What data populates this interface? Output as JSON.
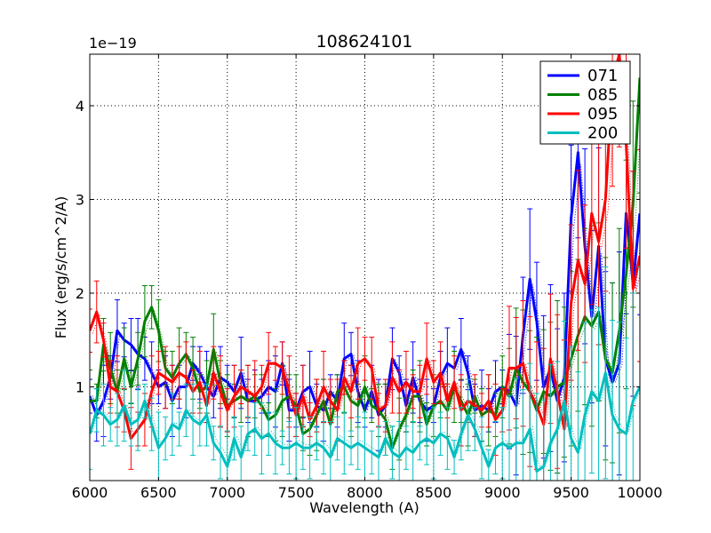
{
  "chart_data": {
    "type": "line",
    "title": "108624101",
    "xlabel": "Wavelength (A)",
    "ylabel": "Flux (erg/s/cm^2/A)",
    "y_scale_label": "1e−19",
    "xlim": [
      6000,
      10000
    ],
    "ylim": [
      0.0,
      4.55
    ],
    "xticks": [
      6000,
      6500,
      7000,
      7500,
      8000,
      8500,
      9000,
      9500,
      10000
    ],
    "xtick_labels": [
      "6000",
      "6500",
      "7000",
      "7500",
      "8000",
      "8500",
      "9000",
      "9500",
      "10000"
    ],
    "yticks": [
      1,
      2,
      3,
      4
    ],
    "ytick_labels": [
      "1",
      "2",
      "3",
      "4"
    ],
    "grid": true,
    "legend_position": "top-right",
    "x": [
      6000,
      6050,
      6100,
      6150,
      6200,
      6250,
      6300,
      6350,
      6400,
      6450,
      6500,
      6550,
      6600,
      6650,
      6700,
      6750,
      6800,
      6850,
      6900,
      6950,
      7000,
      7050,
      7100,
      7150,
      7200,
      7250,
      7300,
      7350,
      7400,
      7450,
      7500,
      7550,
      7600,
      7650,
      7700,
      7750,
      7800,
      7850,
      7900,
      7950,
      8000,
      8050,
      8100,
      8150,
      8200,
      8250,
      8300,
      8350,
      8400,
      8450,
      8500,
      8550,
      8600,
      8650,
      8700,
      8750,
      8800,
      8850,
      8900,
      8950,
      9000,
      9050,
      9100,
      9150,
      9200,
      9250,
      9300,
      9350,
      9400,
      9450,
      9500,
      9550,
      9600,
      9650,
      9700,
      9750,
      9800,
      9850,
      9900,
      9950,
      10000
    ],
    "series": [
      {
        "name": "071",
        "color": "#0000ff",
        "values": [
          0.9,
          0.7,
          0.85,
          1.1,
          1.6,
          1.5,
          1.45,
          1.35,
          1.3,
          1.15,
          1.0,
          1.05,
          0.85,
          1.0,
          1.0,
          1.25,
          1.15,
          1.0,
          0.9,
          1.1,
          1.05,
          0.95,
          1.15,
          0.85,
          0.85,
          0.9,
          1.0,
          0.95,
          1.25,
          0.75,
          0.75,
          0.95,
          1.0,
          0.8,
          0.75,
          0.95,
          0.85,
          1.3,
          1.35,
          0.95,
          0.75,
          0.95,
          0.7,
          0.8,
          1.3,
          1.15,
          0.8,
          1.1,
          0.85,
          0.75,
          0.8,
          1.1,
          1.25,
          1.2,
          1.4,
          1.15,
          0.75,
          0.8,
          0.75,
          0.95,
          1.0,
          0.95,
          0.8,
          1.55,
          2.15,
          1.7,
          1.0,
          1.2,
          0.85,
          1.1,
          2.8,
          3.5,
          2.5,
          1.75,
          2.5,
          1.3,
          1.05,
          1.25,
          2.85,
          2.1,
          2.85
        ]
      },
      {
        "name": "085",
        "color": "#008000",
        "values": [
          0.85,
          0.85,
          1.45,
          1.2,
          0.95,
          1.3,
          1.0,
          1.3,
          1.7,
          1.85,
          1.6,
          1.2,
          1.1,
          1.25,
          1.35,
          1.2,
          0.95,
          1.0,
          1.4,
          1.05,
          0.8,
          0.85,
          0.9,
          0.85,
          0.9,
          0.8,
          0.65,
          0.7,
          0.85,
          0.9,
          0.8,
          0.5,
          0.55,
          0.7,
          0.85,
          0.6,
          0.95,
          1.0,
          0.85,
          0.8,
          1.0,
          0.8,
          0.75,
          0.65,
          0.35,
          0.55,
          0.7,
          0.9,
          0.9,
          0.6,
          0.8,
          0.85,
          0.75,
          1.0,
          0.85,
          0.7,
          0.9,
          0.7,
          0.75,
          0.7,
          1.0,
          0.9,
          1.2,
          1.05,
          0.95,
          0.75,
          0.95,
          0.9,
          1.0,
          1.05,
          1.3,
          1.55,
          1.75,
          1.65,
          1.8,
          1.3,
          1.15,
          1.6,
          2.2,
          2.95,
          4.3
        ]
      },
      {
        "name": "095",
        "color": "#ff0000",
        "values": [
          1.6,
          1.8,
          1.5,
          1.0,
          0.95,
          0.75,
          0.45,
          0.55,
          0.65,
          0.95,
          1.15,
          1.1,
          1.05,
          1.15,
          1.1,
          0.95,
          1.05,
          0.8,
          1.15,
          0.95,
          0.75,
          0.9,
          1.0,
          0.95,
          0.9,
          1.0,
          1.25,
          1.25,
          1.2,
          0.95,
          0.7,
          0.9,
          0.65,
          0.8,
          1.0,
          0.85,
          0.75,
          1.1,
          0.95,
          1.25,
          1.3,
          1.2,
          0.75,
          0.8,
          1.1,
          0.95,
          1.05,
          0.95,
          0.95,
          1.3,
          1.05,
          1.15,
          0.85,
          1.05,
          0.75,
          0.85,
          0.8,
          0.75,
          0.85,
          0.65,
          0.75,
          1.2,
          1.2,
          1.25,
          0.95,
          0.8,
          0.6,
          1.3,
          0.95,
          0.55,
          1.9,
          2.35,
          2.1,
          2.85,
          2.55,
          3.0,
          4.25,
          4.55,
          3.6,
          2.05,
          2.4
        ]
      },
      {
        "name": "200",
        "color": "#00bfbf",
        "values": [
          0.5,
          0.75,
          0.7,
          0.6,
          0.65,
          0.8,
          0.6,
          0.65,
          0.85,
          0.6,
          0.35,
          0.45,
          0.6,
          0.55,
          0.75,
          0.65,
          0.6,
          0.7,
          0.4,
          0.3,
          0.15,
          0.45,
          0.25,
          0.5,
          0.55,
          0.45,
          0.5,
          0.4,
          0.35,
          0.35,
          0.4,
          0.35,
          0.35,
          0.4,
          0.35,
          0.25,
          0.45,
          0.4,
          0.35,
          0.4,
          0.35,
          0.3,
          0.25,
          0.45,
          0.3,
          0.25,
          0.35,
          0.3,
          0.4,
          0.45,
          0.4,
          0.5,
          0.45,
          0.25,
          0.5,
          0.7,
          0.55,
          0.35,
          0.15,
          0.35,
          0.4,
          0.35,
          0.4,
          0.4,
          0.55,
          0.1,
          0.15,
          0.4,
          0.55,
          0.85,
          0.45,
          0.3,
          0.7,
          0.95,
          0.85,
          1.15,
          0.7,
          0.55,
          0.5,
          0.85,
          1.0
        ]
      }
    ]
  }
}
